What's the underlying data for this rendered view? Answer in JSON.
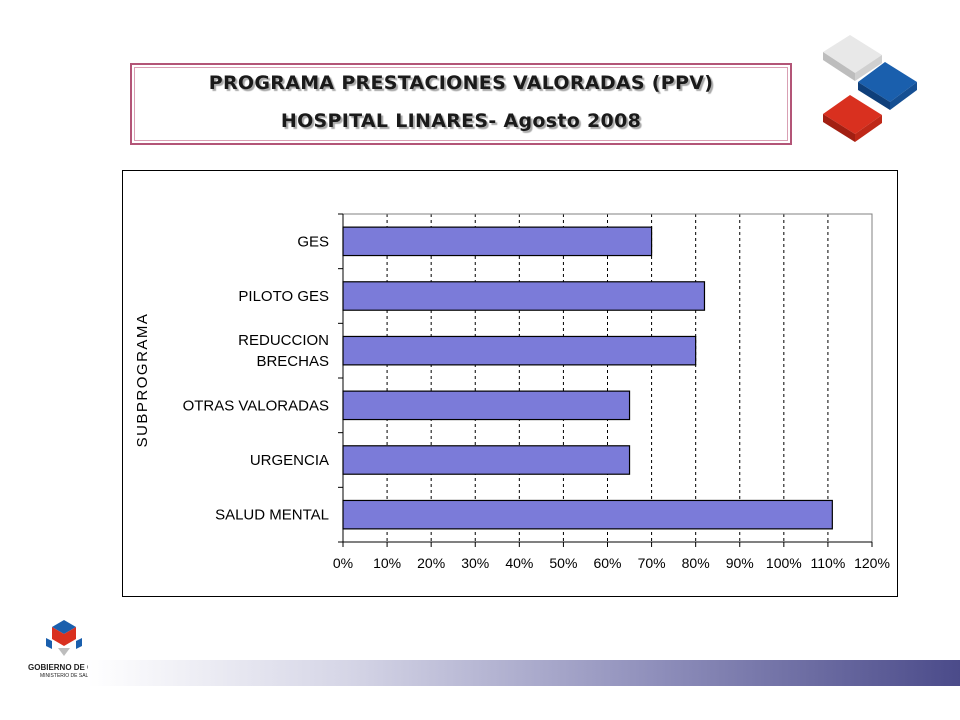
{
  "header": {
    "title_line1": "PROGRAMA PRESTACIONES VALORADAS (PPV)",
    "title_line2": "HOSPITAL LINARES- Agosto 2008"
  },
  "logo": {
    "name": "GOBIERNO DE CHILE",
    "subtitle": "MINISTERIO DE SALUD"
  },
  "colors": {
    "bar": "#7b7bd9",
    "bar_edge": "#000000",
    "title_border": "#b35577"
  },
  "chart_data": {
    "type": "bar",
    "orientation": "horizontal",
    "title": "",
    "ylabel": "SUBPROGRAMA",
    "xlabel": "",
    "categories": [
      "GES",
      "PILOTO GES",
      "REDUCCION BRECHAS",
      "OTRAS VALORADAS",
      "URGENCIA",
      "SALUD MENTAL"
    ],
    "category_lines": [
      [
        "GES"
      ],
      [
        "PILOTO GES"
      ],
      [
        "REDUCCION",
        "BRECHAS"
      ],
      [
        "OTRAS VALORADAS"
      ],
      [
        "URGENCIA"
      ],
      [
        "SALUD MENTAL"
      ]
    ],
    "values": [
      70,
      82,
      80,
      65,
      65,
      111
    ],
    "unit": "%",
    "xlim": [
      0,
      120
    ],
    "x_ticks": [
      0,
      10,
      20,
      30,
      40,
      50,
      60,
      70,
      80,
      90,
      100,
      110,
      120
    ],
    "x_tick_labels": [
      "0%",
      "10%",
      "20%",
      "30%",
      "40%",
      "50%",
      "60%",
      "70%",
      "80%",
      "90%",
      "100%",
      "110%",
      "120%"
    ],
    "grid": "vertical dashed",
    "legend": "none"
  }
}
